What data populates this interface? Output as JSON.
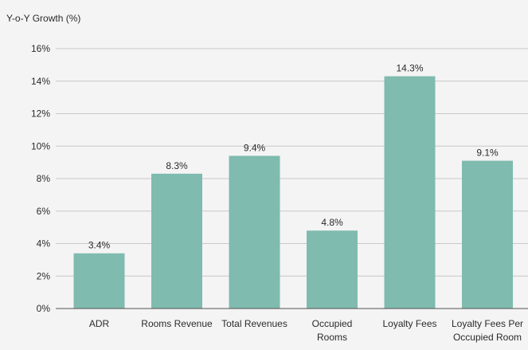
{
  "chart_data": {
    "type": "bar",
    "title": "",
    "ylabel": "Y-o-Y Growth (%)",
    "xlabel": "",
    "categories": [
      [
        "ADR"
      ],
      [
        "Rooms Revenue"
      ],
      [
        "Total Revenues"
      ],
      [
        "Occupied",
        "Rooms"
      ],
      [
        "Loyalty Fees"
      ],
      [
        "Loyalty Fees Per",
        "Occupied Room"
      ]
    ],
    "values": [
      3.4,
      8.3,
      9.4,
      4.8,
      14.3,
      9.1
    ],
    "data_labels": [
      "3.4%",
      "8.3%",
      "9.4%",
      "4.8%",
      "14.3%",
      "9.1%"
    ],
    "ylim": [
      0,
      16
    ],
    "yticks": [
      0,
      2,
      4,
      6,
      8,
      10,
      12,
      14,
      16
    ],
    "ytick_labels": [
      "0%",
      "2%",
      "4%",
      "6%",
      "8%",
      "10%",
      "12%",
      "14%",
      "16%"
    ],
    "grid": true,
    "legend": "none",
    "colors": {
      "bar": "#7fbbaf",
      "grid": "#c8c8c8",
      "axis": "#555555",
      "background": "#f4f4f4"
    }
  }
}
